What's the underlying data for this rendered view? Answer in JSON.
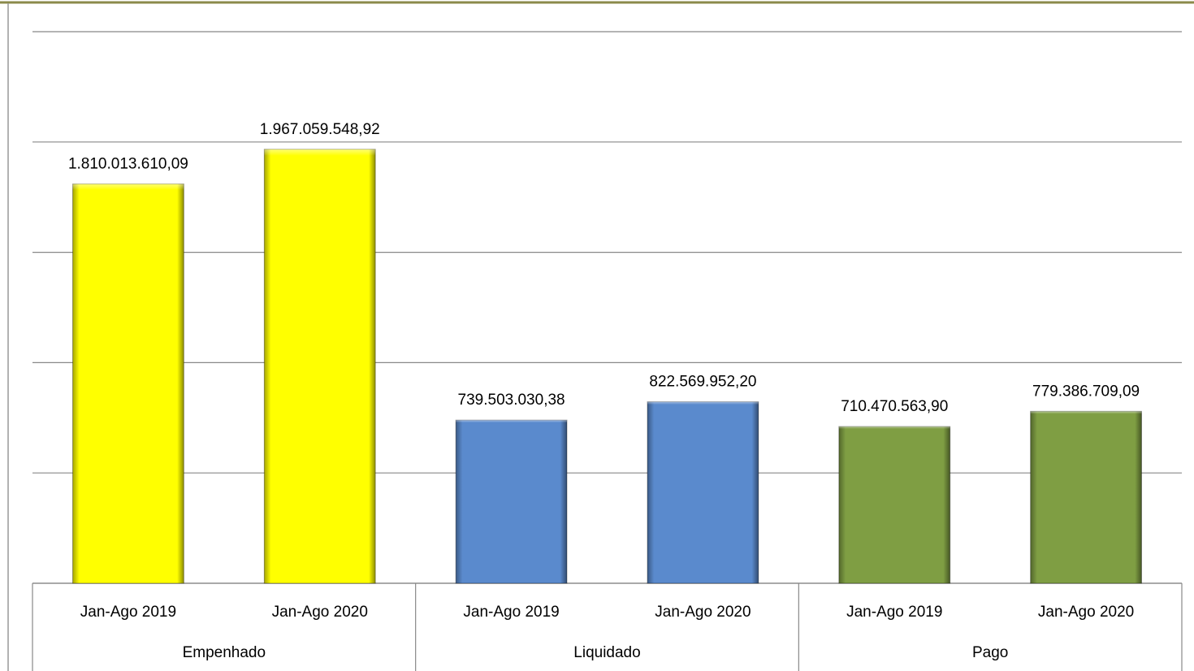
{
  "chart_data": {
    "type": "bar",
    "categories": [
      "Jan-Ago 2019",
      "Jan-Ago 2020",
      "Jan-Ago 2019",
      "Jan-Ago 2020",
      "Jan-Ago 2019",
      "Jan-Ago 2020"
    ],
    "group_labels": [
      "Empenhado",
      "Liquidado",
      "Pago"
    ],
    "colors": [
      "#ffff00",
      "#5a8acd",
      "#7f9e43"
    ],
    "values": [
      1810013610.09,
      1967059548.92,
      739503030.38,
      822569952.2,
      710470563.9,
      779386709.09
    ],
    "value_labels": [
      "1.810.013.610,09",
      "1.967.059.548,92",
      "739.503.030,38",
      "822.569.952,20",
      "710.470.563,90",
      "779.386.709,09"
    ],
    "ylim": [
      0,
      2500000000
    ],
    "yticks": [
      0,
      500000000,
      1000000000,
      1500000000,
      2000000000,
      2500000000
    ],
    "grid": true
  }
}
